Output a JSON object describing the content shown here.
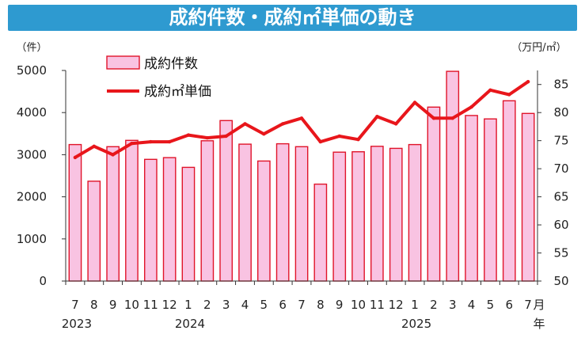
{
  "title": "成約件数・成約㎡単価の動き",
  "chart_data": {
    "type": "bar+line",
    "categories": [
      "7",
      "8",
      "9",
      "10",
      "11",
      "12",
      "1",
      "2",
      "3",
      "4",
      "5",
      "6",
      "7",
      "8",
      "9",
      "10",
      "11",
      "12",
      "1",
      "2",
      "3",
      "4",
      "5",
      "6",
      "7"
    ],
    "month_suffix": "月",
    "year_suffix": "年",
    "year_labels": [
      {
        "index": 0,
        "label": "2023"
      },
      {
        "index": 6,
        "label": "2024"
      },
      {
        "index": 18,
        "label": "2025"
      }
    ],
    "left_axis": {
      "unit": "（件）",
      "ticks": [
        "0",
        "1000",
        "2000",
        "3000",
        "4000",
        "5000"
      ],
      "range": [
        0,
        5000
      ]
    },
    "right_axis": {
      "unit": "（万円/㎡）",
      "ticks": [
        "50",
        "55",
        "60",
        "65",
        "70",
        "75",
        "80",
        "85"
      ],
      "range": [
        50,
        87.5
      ]
    },
    "series": [
      {
        "name": "成約件数",
        "kind": "bar",
        "axis": "left",
        "color_fill": "#f9c3e2",
        "color_stroke": "#e0142a",
        "values": [
          3240,
          2370,
          3190,
          3340,
          2890,
          2930,
          2700,
          3330,
          3810,
          3250,
          2850,
          3260,
          3190,
          2300,
          3060,
          3070,
          3200,
          3150,
          3240,
          4130,
          4980,
          3930,
          3850,
          4280,
          3980
        ]
      },
      {
        "name": "成約㎡単価",
        "kind": "line",
        "axis": "right",
        "color": "#e8161b",
        "values": [
          72.0,
          74.0,
          72.5,
          74.5,
          74.8,
          74.8,
          76.0,
          75.5,
          75.8,
          78.0,
          76.2,
          78.0,
          79.0,
          74.8,
          75.8,
          75.2,
          79.3,
          78.0,
          81.8,
          79.0,
          79.0,
          81.0,
          84.0,
          83.2,
          85.5
        ]
      }
    ],
    "grid": false,
    "legend_position": "top-left"
  }
}
